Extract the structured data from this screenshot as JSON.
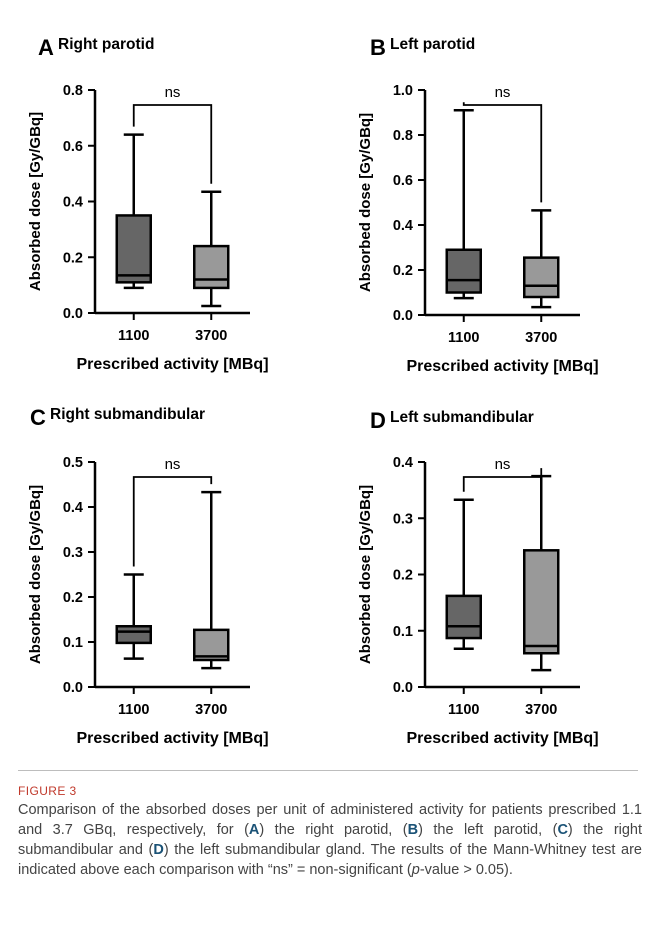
{
  "figure_label": "FIGURE 3",
  "caption": {
    "parts": [
      {
        "t": "Comparison of the absorbed doses per unit of administered activity for patients prescribed 1.1 and 3.7 GBq, respectively, for ("
      },
      {
        "t": "A",
        "b": true
      },
      {
        "t": ") the right parotid, ("
      },
      {
        "t": "B",
        "b": true
      },
      {
        "t": ") the left parotid, ("
      },
      {
        "t": "C",
        "b": true
      },
      {
        "t": ") the right submandibular and ("
      },
      {
        "t": "D",
        "b": true
      },
      {
        "t": ") the left submandibular gland. The results of the Mann-Whitney test are indicated above each comparison with “ns” = non-significant ("
      },
      {
        "t": "p",
        "i": true
      },
      {
        "t": "-value > 0.05)."
      }
    ]
  },
  "colors": {
    "box_1100": "#666666",
    "box_3700": "#999999",
    "line": "#000000"
  },
  "chart_data": [
    {
      "type": "box",
      "panel": "A",
      "title": "Right parotid",
      "ylabel": "Absorbed dose [Gy/GBq]",
      "xlabel": "Prescribed activity [MBq]",
      "categories": [
        "1100",
        "3700"
      ],
      "ylim": [
        0,
        0.8
      ],
      "yticks": [
        "0.0",
        "0.2",
        "0.4",
        "0.6",
        "0.8"
      ],
      "boxes": [
        {
          "min": 0.09,
          "q1": 0.11,
          "median": 0.135,
          "q3": 0.35,
          "max": 0.64
        },
        {
          "min": 0.025,
          "q1": 0.09,
          "median": 0.12,
          "q3": 0.24,
          "max": 0.435
        }
      ],
      "annotation": "ns"
    },
    {
      "type": "box",
      "panel": "B",
      "title": "Left parotid",
      "ylabel": "Absorbed dose [Gy/GBq]",
      "xlabel": "Prescribed activity [MBq]",
      "categories": [
        "1100",
        "3700"
      ],
      "ylim": [
        0,
        1.0
      ],
      "yticks": [
        "0.0",
        "0.2",
        "0.4",
        "0.6",
        "0.8",
        "1.0"
      ],
      "boxes": [
        {
          "min": 0.075,
          "q1": 0.1,
          "median": 0.155,
          "q3": 0.29,
          "max": 0.91
        },
        {
          "min": 0.035,
          "q1": 0.08,
          "median": 0.13,
          "q3": 0.255,
          "max": 0.465
        }
      ],
      "annotation": "ns"
    },
    {
      "type": "box",
      "panel": "C",
      "title": "Right submandibular",
      "ylabel": "Absorbed dose [Gy/GBq]",
      "xlabel": "Prescribed activity [MBq]",
      "categories": [
        "1100",
        "3700"
      ],
      "ylim": [
        0,
        0.5
      ],
      "yticks": [
        "0.0",
        "0.1",
        "0.2",
        "0.3",
        "0.4",
        "0.5"
      ],
      "boxes": [
        {
          "min": 0.063,
          "q1": 0.098,
          "median": 0.123,
          "q3": 0.135,
          "max": 0.25
        },
        {
          "min": 0.042,
          "q1": 0.06,
          "median": 0.068,
          "q3": 0.127,
          "max": 0.433
        }
      ],
      "annotation": "ns"
    },
    {
      "type": "box",
      "panel": "D",
      "title": "Left submandibular",
      "ylabel": "Absorbed dose [Gy/GBq]",
      "xlabel": "Prescribed activity [MBq]",
      "categories": [
        "1100",
        "3700"
      ],
      "ylim": [
        0,
        0.4
      ],
      "yticks": [
        "0.0",
        "0.1",
        "0.2",
        "0.3",
        "0.4"
      ],
      "boxes": [
        {
          "min": 0.068,
          "q1": 0.087,
          "median": 0.108,
          "q3": 0.162,
          "max": 0.333
        },
        {
          "min": 0.03,
          "q1": 0.06,
          "median": 0.073,
          "q3": 0.243,
          "max": 0.375
        }
      ],
      "annotation": "ns"
    }
  ]
}
